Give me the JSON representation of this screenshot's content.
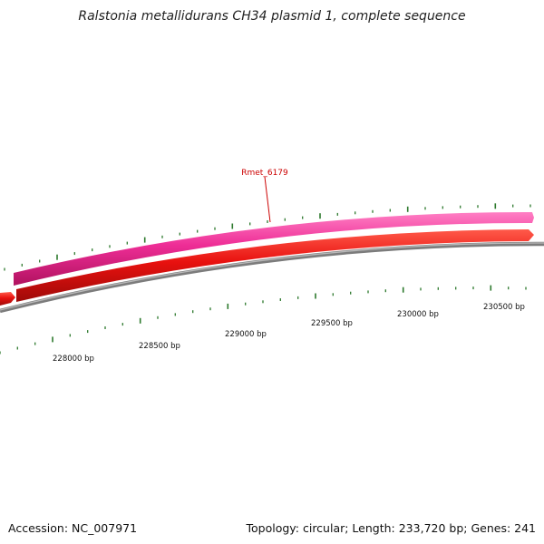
{
  "title": "Ralstonia metallidurans CH34 plasmid 1, complete sequence",
  "footer": {
    "accession": "Accession: NC_007971",
    "summary": "Topology: circular; Length: 233,720 bp; Genes: 241"
  },
  "colors": {
    "forward_gene": "#ee2d96",
    "reverse_gene": "#e8110f",
    "backbone": "#8a8a8a",
    "ticks": "#2d7a2d",
    "gene_label": "#cc0000"
  },
  "genes": [
    {
      "id": "Rmet_6179",
      "label": "Rmet_6179",
      "strand": "+",
      "color_key": "forward_gene"
    },
    {
      "id": "reverse-gene-large",
      "label": "",
      "strand": "-",
      "color_key": "reverse_gene"
    },
    {
      "id": "reverse-gene-left-fragment",
      "label": "",
      "strand": "-",
      "color_key": "reverse_gene"
    }
  ],
  "scale_labels": [
    "228000 bp",
    "228500 bp",
    "229000 bp",
    "229500 bp",
    "230000 bp",
    "230500 bp"
  ]
}
